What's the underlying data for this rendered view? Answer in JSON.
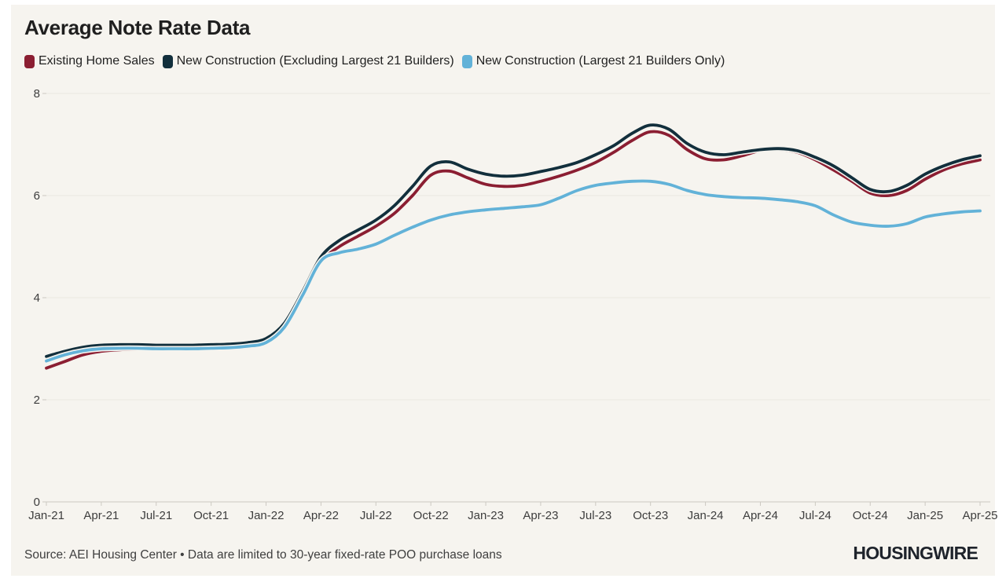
{
  "title": "Average Note Rate Data",
  "legend": [
    {
      "label": "Existing Home Sales",
      "color": "#8b1e32"
    },
    {
      "label": "New Construction (Excluding Largest 21 Builders)",
      "color": "#122f3c"
    },
    {
      "label": "New Construction (Largest 21 Builders Only)",
      "color": "#62b2d8"
    }
  ],
  "source_note": "Source: AEI Housing Center • Data are limited to 30-year fixed-rate POO purchase loans",
  "brand": "HOUSINGWIRE",
  "colors": {
    "background": "#f6f4ef",
    "frame": "#ffffff",
    "grid": "#eae7e1",
    "axis": "#ccc9c2",
    "tick_text": "#3d3d3d"
  },
  "chart_data": {
    "type": "line",
    "title": "Average Note Rate Data",
    "xlabel": "",
    "ylabel": "",
    "ylim": [
      0,
      8
    ],
    "yticks": [
      0,
      2,
      4,
      6,
      8
    ],
    "x_tick_every": 3,
    "grid": "horizontal",
    "legend_position": "top",
    "x": [
      "Jan-21",
      "Feb-21",
      "Mar-21",
      "Apr-21",
      "May-21",
      "Jun-21",
      "Jul-21",
      "Aug-21",
      "Sep-21",
      "Oct-21",
      "Nov-21",
      "Dec-21",
      "Jan-22",
      "Feb-22",
      "Mar-22",
      "Apr-22",
      "May-22",
      "Jun-22",
      "Jul-22",
      "Aug-22",
      "Sep-22",
      "Oct-22",
      "Nov-22",
      "Dec-22",
      "Jan-23",
      "Feb-23",
      "Mar-23",
      "Apr-23",
      "May-23",
      "Jun-23",
      "Jul-23",
      "Aug-23",
      "Sep-23",
      "Oct-23",
      "Nov-23",
      "Dec-23",
      "Jan-24",
      "Feb-24",
      "Mar-24",
      "Apr-24",
      "May-24",
      "Jun-24",
      "Jul-24",
      "Aug-24",
      "Sep-24",
      "Oct-24",
      "Nov-24",
      "Dec-24",
      "Jan-25",
      "Feb-25",
      "Mar-25",
      "Apr-25"
    ],
    "series": [
      {
        "name": "Existing Home Sales",
        "color": "#8b1e32",
        "values": [
          2.62,
          2.75,
          2.88,
          2.95,
          2.98,
          2.99,
          2.99,
          2.99,
          2.99,
          3.0,
          3.02,
          3.06,
          3.15,
          3.45,
          4.05,
          4.7,
          5.0,
          5.2,
          5.4,
          5.65,
          6.0,
          6.4,
          6.48,
          6.35,
          6.22,
          6.18,
          6.2,
          6.28,
          6.38,
          6.5,
          6.65,
          6.85,
          7.08,
          7.25,
          7.18,
          6.9,
          6.72,
          6.7,
          6.78,
          6.88,
          6.9,
          6.85,
          6.7,
          6.5,
          6.28,
          6.05,
          6.0,
          6.1,
          6.32,
          6.5,
          6.62,
          6.7
        ]
      },
      {
        "name": "New Construction (Excluding Largest 21 Builders)",
        "color": "#122f3c",
        "values": [
          2.85,
          2.95,
          3.03,
          3.07,
          3.08,
          3.08,
          3.07,
          3.07,
          3.07,
          3.08,
          3.09,
          3.12,
          3.2,
          3.5,
          4.12,
          4.8,
          5.12,
          5.32,
          5.52,
          5.8,
          6.18,
          6.58,
          6.66,
          6.52,
          6.42,
          6.38,
          6.4,
          6.47,
          6.55,
          6.65,
          6.8,
          6.98,
          7.22,
          7.38,
          7.3,
          7.02,
          6.85,
          6.8,
          6.85,
          6.9,
          6.92,
          6.88,
          6.75,
          6.58,
          6.35,
          6.12,
          6.08,
          6.2,
          6.42,
          6.58,
          6.7,
          6.78
        ]
      },
      {
        "name": "New Construction (Largest 21 Builders Only)",
        "color": "#62b2d8",
        "values": [
          2.76,
          2.88,
          2.96,
          3.0,
          3.01,
          3.01,
          3.0,
          3.0,
          3.0,
          3.01,
          3.02,
          3.05,
          3.12,
          3.42,
          4.05,
          4.72,
          4.88,
          4.95,
          5.05,
          5.22,
          5.38,
          5.52,
          5.62,
          5.68,
          5.72,
          5.75,
          5.78,
          5.82,
          5.95,
          6.1,
          6.2,
          6.25,
          6.28,
          6.28,
          6.22,
          6.1,
          6.02,
          5.98,
          5.96,
          5.95,
          5.92,
          5.88,
          5.8,
          5.62,
          5.48,
          5.42,
          5.4,
          5.45,
          5.58,
          5.64,
          5.68,
          5.7
        ]
      }
    ]
  }
}
